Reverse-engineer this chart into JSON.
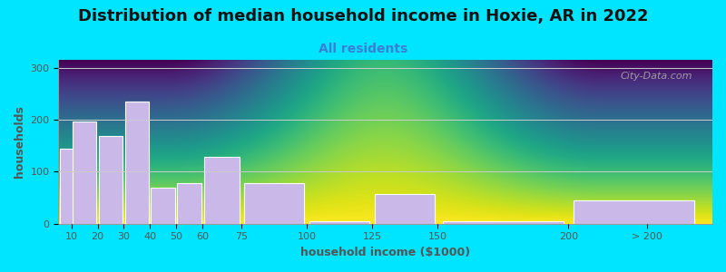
{
  "title": "Distribution of median household income in Hoxie, AR in 2022",
  "subtitle": "All residents",
  "xlabel": "household income ($1000)",
  "ylabel": "households",
  "bar_labels": [
    "10",
    "20",
    "30",
    "40",
    "50",
    "60",
    "75",
    "100",
    "125",
    "150",
    "200",
    "> 200"
  ],
  "bar_values": [
    145,
    197,
    168,
    235,
    70,
    78,
    128,
    78,
    5,
    57,
    5,
    45
  ],
  "bar_left_edges": [
    5,
    10,
    20,
    30,
    40,
    50,
    60,
    75,
    100,
    125,
    150,
    200
  ],
  "bar_widths": [
    10,
    10,
    10,
    10,
    10,
    10,
    15,
    25,
    25,
    25,
    50,
    50
  ],
  "bar_color": "#c9b8e8",
  "bar_edgecolor": "#ffffff",
  "background_outer": "#00e5ff",
  "background_plot_top": "#daf0da",
  "background_plot_bottom": "#ffffff",
  "title_fontsize": 13,
  "subtitle_fontsize": 10,
  "subtitle_color": "#3a7fd5",
  "axis_label_fontsize": 9,
  "tick_label_fontsize": 8,
  "tick_color": "#555555",
  "yticks": [
    0,
    100,
    200,
    300
  ],
  "ylim": [
    0,
    315
  ],
  "xlim_left": 5,
  "xlim_right": 255,
  "grid_color": "#cccccc",
  "watermark_text": "City-Data.com",
  "watermark_color": "#b0b0b0",
  "xtick_positions": [
    10,
    20,
    30,
    40,
    50,
    60,
    75,
    100,
    125,
    150,
    200,
    230
  ],
  "xtick_labels": [
    "10",
    "20",
    "30",
    "40",
    "50",
    "60",
    "75",
    "100",
    "125",
    "150",
    "200",
    "> 200"
  ]
}
